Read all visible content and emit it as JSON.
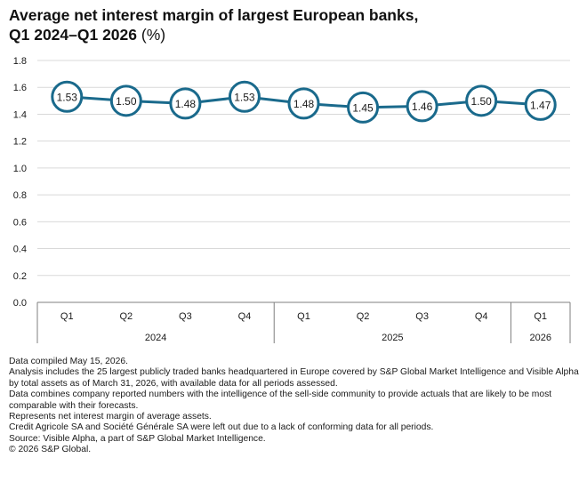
{
  "title": {
    "line1": "Average net interest margin of largest European banks,",
    "line2": "Q1 2024–Q1 2026",
    "unit": "(%)"
  },
  "chart_data": {
    "type": "line",
    "title": "Average net interest margin of largest European banks, Q1 2024–Q1 2026 (%)",
    "categories": [
      "Q1",
      "Q2",
      "Q3",
      "Q4",
      "Q1",
      "Q2",
      "Q3",
      "Q4",
      "Q1"
    ],
    "groups": [
      {
        "label": "2024",
        "count": 4
      },
      {
        "label": "2025",
        "count": 4
      },
      {
        "label": "2026",
        "count": 1
      }
    ],
    "values": [
      1.53,
      1.5,
      1.48,
      1.53,
      1.48,
      1.45,
      1.46,
      1.5,
      1.47
    ],
    "data_labels": [
      "1.53",
      "1.50",
      "1.48",
      "1.53",
      "1.48",
      "1.45",
      "1.46",
      "1.50",
      "1.47"
    ],
    "ylim": [
      0,
      1.8
    ],
    "yticks": [
      0,
      0.2,
      0.4,
      0.6,
      0.8,
      1.0,
      1.2,
      1.4,
      1.6,
      1.8
    ],
    "ytick_labels": [
      "0.0",
      "0.2",
      "0.4",
      "0.6",
      "0.8",
      "1.0",
      "1.2",
      "1.4",
      "1.6",
      "1.8"
    ],
    "grid": true,
    "legend": "none",
    "colors": {
      "line": "#1a6a8c",
      "marker_fill": "#ffffff",
      "grid": "#d9d9d9",
      "axis": "#7f7f7f"
    }
  },
  "notes": [
    "Data compiled May 15, 2026.",
    "Analysis includes the 25 largest publicly traded banks headquartered in Europe covered by S&P Global Market Intelligence and Visible Alpha by total assets as of March 31, 2026, with available data for all periods assessed.",
    "Data combines company reported numbers with the intelligence of the sell-side community to provide actuals that are likely to be most comparable with their forecasts.",
    "Represents net interest margin of average assets.",
    "Credit Agricole SA and Société Générale SA were left out due to a lack of conforming data for all periods.",
    "Source: Visible Alpha, a part of S&P Global Market Intelligence.",
    "© 2026 S&P Global."
  ]
}
